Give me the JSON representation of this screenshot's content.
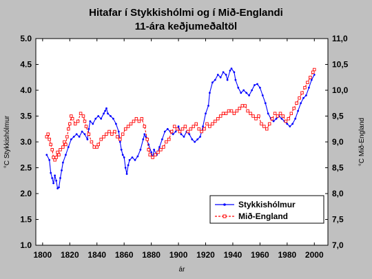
{
  "chart_data": {
    "type": "line",
    "title": "Hitafar í Stykkishólmi og í Mið-Englandi",
    "subtitle": "11-ára keðjumeðaltöl",
    "xlabel": "ár",
    "ylabel_left": "°C Stykkishólmur",
    "ylabel_right": "°C Mið-England",
    "xlim": [
      1795,
      2010
    ],
    "ylim_left": [
      1.0,
      5.0
    ],
    "ylim_right": [
      7.0,
      11.0
    ],
    "x_ticks": [
      "1800",
      "1820",
      "1840",
      "1860",
      "1880",
      "1900",
      "1920",
      "1940",
      "1960",
      "1980",
      "2000"
    ],
    "y_ticks_left": [
      "1.0",
      "1.5",
      "2.0",
      "2.5",
      "3.0",
      "3.5",
      "4.0",
      "4.5",
      "5.0"
    ],
    "y_ticks_right": [
      "7,0",
      "7,5",
      "8,0",
      "8,5",
      "9,0",
      "9,5",
      "10,0",
      "10,5",
      "11,0"
    ],
    "grid": false,
    "legend_position": "bottom-right",
    "series": [
      {
        "name": "Stykkishólmur",
        "axis": "left",
        "color": "#0000ff",
        "marker": "dot",
        "points": [
          [
            1803,
            2.75
          ],
          [
            1805,
            2.65
          ],
          [
            1806,
            2.4
          ],
          [
            1807,
            2.3
          ],
          [
            1808,
            2.2
          ],
          [
            1809,
            2.35
          ],
          [
            1810,
            2.25
          ],
          [
            1811,
            2.1
          ],
          [
            1812,
            2.12
          ],
          [
            1813,
            2.3
          ],
          [
            1814,
            2.45
          ],
          [
            1815,
            2.6
          ],
          [
            1817,
            2.75
          ],
          [
            1819,
            2.9
          ],
          [
            1821,
            3.05
          ],
          [
            1823,
            3.1
          ],
          [
            1825,
            3.15
          ],
          [
            1827,
            3.1
          ],
          [
            1829,
            3.2
          ],
          [
            1831,
            3.15
          ],
          [
            1833,
            3.05
          ],
          [
            1834,
            3.25
          ],
          [
            1835,
            3.4
          ],
          [
            1837,
            3.35
          ],
          [
            1839,
            3.45
          ],
          [
            1841,
            3.5
          ],
          [
            1843,
            3.45
          ],
          [
            1845,
            3.55
          ],
          [
            1846,
            3.6
          ],
          [
            1847,
            3.65
          ],
          [
            1848,
            3.55
          ],
          [
            1850,
            3.5
          ],
          [
            1852,
            3.45
          ],
          [
            1854,
            3.35
          ],
          [
            1856,
            3.2
          ],
          [
            1857,
            3.0
          ],
          [
            1858,
            2.85
          ],
          [
            1859,
            2.75
          ],
          [
            1860,
            2.7
          ],
          [
            1861,
            2.5
          ],
          [
            1862,
            2.38
          ],
          [
            1863,
            2.55
          ],
          [
            1864,
            2.65
          ],
          [
            1866,
            2.7
          ],
          [
            1868,
            2.65
          ],
          [
            1870,
            2.72
          ],
          [
            1872,
            2.85
          ],
          [
            1874,
            3.05
          ],
          [
            1875,
            3.15
          ],
          [
            1876,
            3.1
          ],
          [
            1878,
            2.95
          ],
          [
            1880,
            2.8
          ],
          [
            1881,
            2.7
          ],
          [
            1882,
            2.85
          ],
          [
            1884,
            2.75
          ],
          [
            1886,
            2.9
          ],
          [
            1888,
            3.05
          ],
          [
            1890,
            3.2
          ],
          [
            1892,
            3.25
          ],
          [
            1894,
            3.2
          ],
          [
            1896,
            3.15
          ],
          [
            1898,
            3.2
          ],
          [
            1900,
            3.3
          ],
          [
            1902,
            3.15
          ],
          [
            1904,
            3.1
          ],
          [
            1906,
            3.2
          ],
          [
            1908,
            3.15
          ],
          [
            1910,
            3.05
          ],
          [
            1912,
            3.0
          ],
          [
            1914,
            3.05
          ],
          [
            1916,
            3.1
          ],
          [
            1918,
            3.3
          ],
          [
            1920,
            3.55
          ],
          [
            1922,
            3.7
          ],
          [
            1923,
            3.95
          ],
          [
            1925,
            4.15
          ],
          [
            1927,
            4.2
          ],
          [
            1929,
            4.3
          ],
          [
            1931,
            4.25
          ],
          [
            1933,
            4.35
          ],
          [
            1935,
            4.3
          ],
          [
            1936,
            4.2
          ],
          [
            1938,
            4.38
          ],
          [
            1939,
            4.42
          ],
          [
            1941,
            4.35
          ],
          [
            1942,
            4.2
          ],
          [
            1944,
            4.05
          ],
          [
            1946,
            3.95
          ],
          [
            1948,
            4.0
          ],
          [
            1950,
            3.95
          ],
          [
            1952,
            3.9
          ],
          [
            1954,
            4.0
          ],
          [
            1956,
            4.1
          ],
          [
            1958,
            4.12
          ],
          [
            1960,
            4.05
          ],
          [
            1962,
            3.9
          ],
          [
            1964,
            3.75
          ],
          [
            1966,
            3.55
          ],
          [
            1968,
            3.45
          ],
          [
            1970,
            3.4
          ],
          [
            1972,
            3.45
          ],
          [
            1974,
            3.5
          ],
          [
            1976,
            3.45
          ],
          [
            1978,
            3.4
          ],
          [
            1980,
            3.35
          ],
          [
            1982,
            3.3
          ],
          [
            1984,
            3.35
          ],
          [
            1986,
            3.45
          ],
          [
            1988,
            3.6
          ],
          [
            1990,
            3.75
          ],
          [
            1992,
            3.85
          ],
          [
            1994,
            3.9
          ],
          [
            1996,
            4.05
          ],
          [
            1998,
            4.2
          ],
          [
            2000,
            4.3
          ]
        ]
      },
      {
        "name": "Mið-England",
        "axis": "right",
        "color": "#ff0000",
        "marker": "square",
        "points": [
          [
            1803,
            9.1
          ],
          [
            1804,
            9.15
          ],
          [
            1805,
            9.05
          ],
          [
            1806,
            8.95
          ],
          [
            1807,
            8.85
          ],
          [
            1808,
            8.7
          ],
          [
            1809,
            8.65
          ],
          [
            1810,
            8.7
          ],
          [
            1811,
            8.8
          ],
          [
            1812,
            8.75
          ],
          [
            1813,
            8.85
          ],
          [
            1815,
            8.9
          ],
          [
            1816,
            9.0
          ],
          [
            1817,
            8.95
          ],
          [
            1818,
            9.1
          ],
          [
            1819,
            9.25
          ],
          [
            1820,
            9.35
          ],
          [
            1821,
            9.5
          ],
          [
            1822,
            9.45
          ],
          [
            1824,
            9.35
          ],
          [
            1826,
            9.4
          ],
          [
            1828,
            9.55
          ],
          [
            1830,
            9.5
          ],
          [
            1831,
            9.4
          ],
          [
            1832,
            9.3
          ],
          [
            1834,
            9.15
          ],
          [
            1836,
            9.0
          ],
          [
            1838,
            8.9
          ],
          [
            1840,
            8.9
          ],
          [
            1841,
            8.95
          ],
          [
            1843,
            9.05
          ],
          [
            1845,
            9.1
          ],
          [
            1847,
            9.15
          ],
          [
            1849,
            9.2
          ],
          [
            1851,
            9.15
          ],
          [
            1853,
            9.2
          ],
          [
            1855,
            9.1
          ],
          [
            1857,
            9.05
          ],
          [
            1859,
            9.15
          ],
          [
            1861,
            9.25
          ],
          [
            1863,
            9.3
          ],
          [
            1865,
            9.35
          ],
          [
            1867,
            9.4
          ],
          [
            1869,
            9.45
          ],
          [
            1871,
            9.4
          ],
          [
            1873,
            9.45
          ],
          [
            1875,
            9.3
          ],
          [
            1877,
            9.05
          ],
          [
            1878,
            8.85
          ],
          [
            1879,
            8.75
          ],
          [
            1881,
            8.7
          ],
          [
            1883,
            8.75
          ],
          [
            1885,
            8.8
          ],
          [
            1887,
            8.85
          ],
          [
            1889,
            8.9
          ],
          [
            1891,
            9.0
          ],
          [
            1893,
            9.05
          ],
          [
            1895,
            9.2
          ],
          [
            1897,
            9.3
          ],
          [
            1899,
            9.25
          ],
          [
            1901,
            9.2
          ],
          [
            1903,
            9.25
          ],
          [
            1905,
            9.3
          ],
          [
            1907,
            9.2
          ],
          [
            1909,
            9.25
          ],
          [
            1911,
            9.3
          ],
          [
            1913,
            9.35
          ],
          [
            1915,
            9.25
          ],
          [
            1917,
            9.2
          ],
          [
            1919,
            9.25
          ],
          [
            1921,
            9.35
          ],
          [
            1923,
            9.3
          ],
          [
            1925,
            9.35
          ],
          [
            1927,
            9.4
          ],
          [
            1929,
            9.45
          ],
          [
            1931,
            9.5
          ],
          [
            1933,
            9.55
          ],
          [
            1935,
            9.55
          ],
          [
            1937,
            9.6
          ],
          [
            1939,
            9.6
          ],
          [
            1941,
            9.55
          ],
          [
            1943,
            9.6
          ],
          [
            1945,
            9.65
          ],
          [
            1947,
            9.7
          ],
          [
            1949,
            9.7
          ],
          [
            1951,
            9.6
          ],
          [
            1953,
            9.55
          ],
          [
            1955,
            9.5
          ],
          [
            1957,
            9.45
          ],
          [
            1959,
            9.5
          ],
          [
            1961,
            9.35
          ],
          [
            1963,
            9.3
          ],
          [
            1965,
            9.25
          ],
          [
            1967,
            9.35
          ],
          [
            1969,
            9.45
          ],
          [
            1971,
            9.55
          ],
          [
            1973,
            9.5
          ],
          [
            1975,
            9.55
          ],
          [
            1977,
            9.5
          ],
          [
            1979,
            9.4
          ],
          [
            1981,
            9.45
          ],
          [
            1983,
            9.55
          ],
          [
            1985,
            9.65
          ],
          [
            1987,
            9.75
          ],
          [
            1989,
            9.85
          ],
          [
            1991,
            9.95
          ],
          [
            1993,
            10.05
          ],
          [
            1995,
            10.15
          ],
          [
            1997,
            10.25
          ],
          [
            1999,
            10.35
          ],
          [
            2000,
            10.4
          ]
        ]
      }
    ]
  }
}
